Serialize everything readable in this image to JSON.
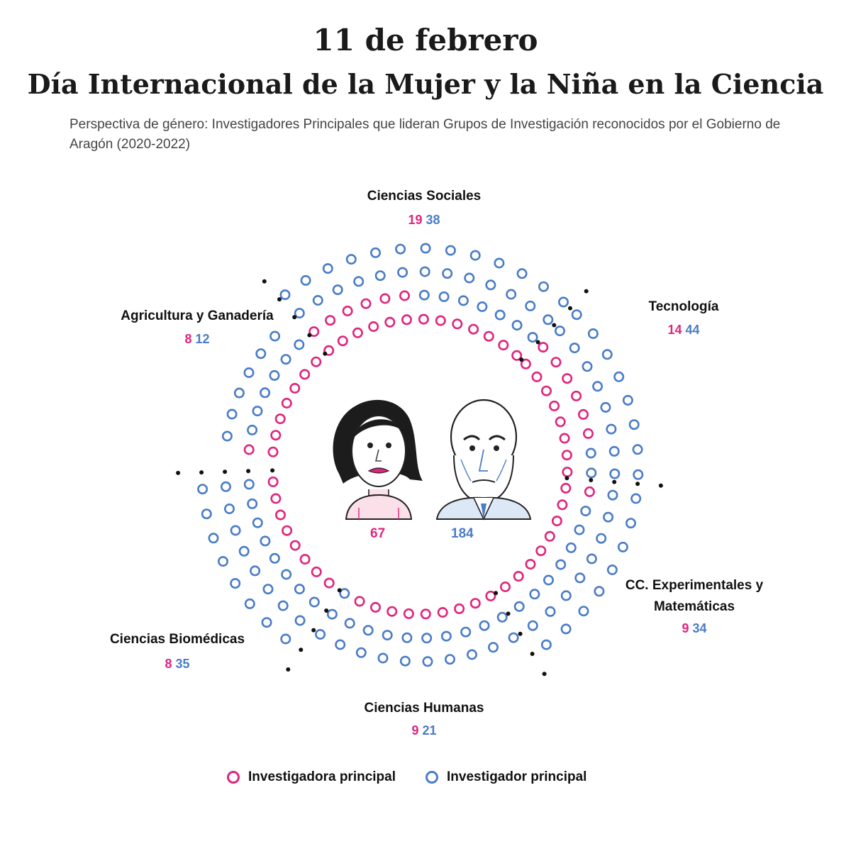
{
  "header": {
    "title_line1": "11 de febrero",
    "title_line2": "Día Internacional de la Mujer y la Niña en la Ciencia",
    "subtitle": "Perspectiva de género: Investigadores Principales que lideran Grupos de Investigación reconocidos por el Gobierno de Aragón (2020-2022)"
  },
  "colors": {
    "female": "#e0247e",
    "male": "#4a7cc7",
    "separator": "#111111"
  },
  "chart_data": {
    "type": "radial-dot",
    "categories": [
      "Ciencias Sociales",
      "Tecnología",
      "CC. Experimentales y Matemáticas",
      "Ciencias Humanas",
      "Ciencias Biomédicas",
      "Agricultura y Ganadería"
    ],
    "series": [
      {
        "name": "Investigadora principal",
        "values": [
          19,
          14,
          9,
          9,
          8,
          8
        ]
      },
      {
        "name": "Investigador principal",
        "values": [
          38,
          44,
          34,
          21,
          35,
          12
        ]
      }
    ],
    "totals": {
      "female": "67",
      "male": "184"
    },
    "legend": [
      "Investigadora principal",
      "Investigador principal"
    ]
  },
  "labels": {
    "sociales": {
      "name": "Ciencias Sociales",
      "f": "19",
      "m": "38"
    },
    "tecnologia": {
      "name": "Tecnología",
      "f": "14",
      "m": "44"
    },
    "experimentales": {
      "name_line1": "CC. Experimentales y",
      "name_line2": "Matemáticas",
      "f": "9",
      "m": "34"
    },
    "humanas": {
      "name": "Ciencias Humanas",
      "f": "9",
      "m": "21"
    },
    "biomedicas": {
      "name": "Ciencias Biomédicas",
      "f": "8",
      "m": "35"
    },
    "agricultura": {
      "name": "Agricultura y Ganadería",
      "f": "8",
      "m": "12"
    }
  },
  "icons": {
    "woman": "woman-portrait-icon",
    "man": "man-portrait-icon"
  }
}
